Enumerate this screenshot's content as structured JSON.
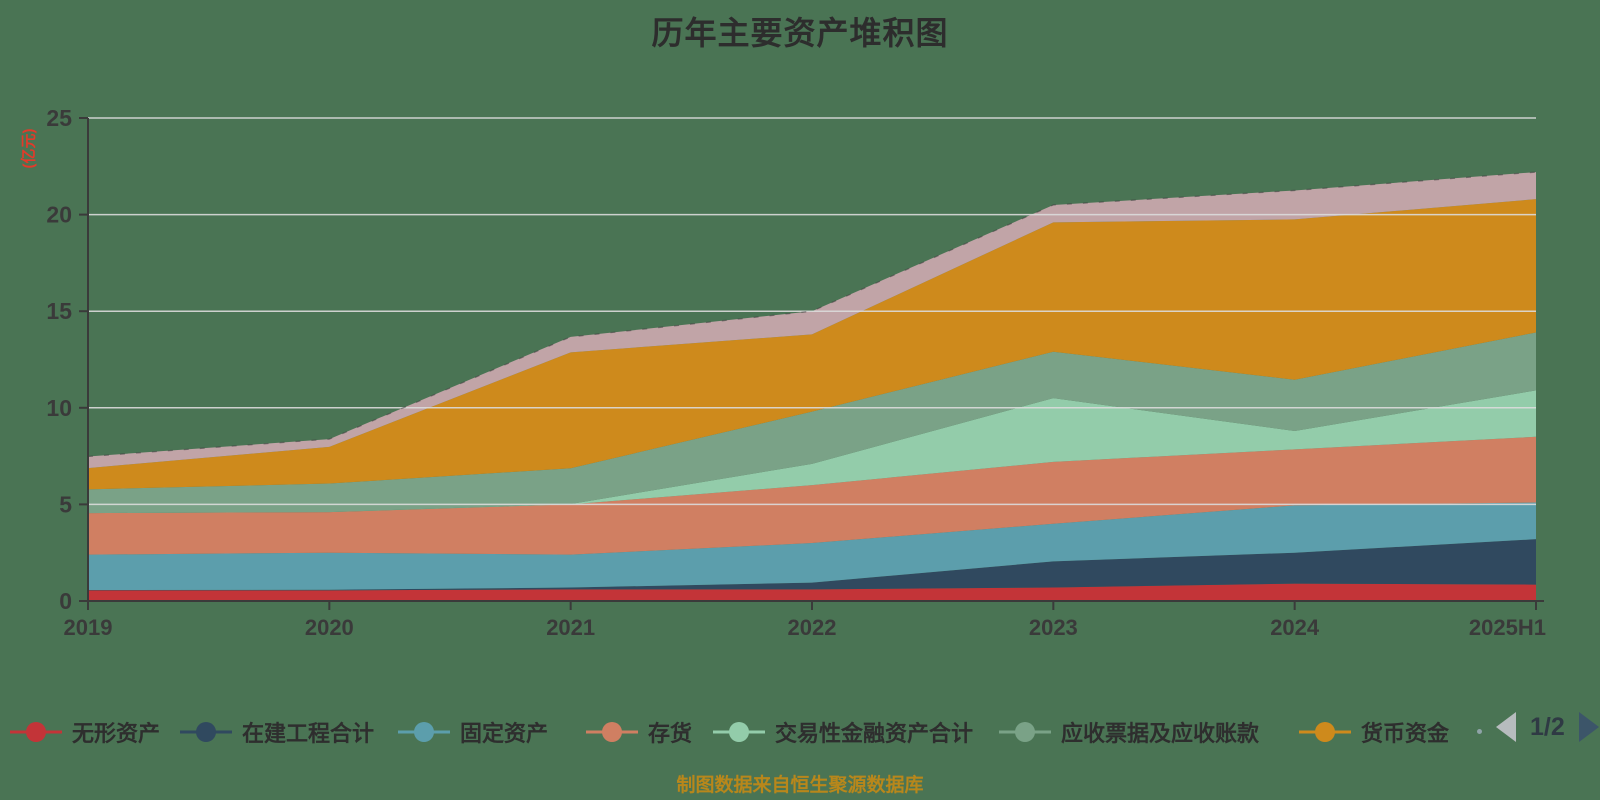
{
  "page": {
    "background_color": "#4A7454",
    "title": "历年主要资产堆积图",
    "caption": "制图数据来自恒生聚源数据库"
  },
  "axes": {
    "y_unit_label": "(亿元)",
    "y_tick_labels": [
      "0",
      "5",
      "10",
      "15",
      "20",
      "25"
    ],
    "x_tick_labels": [
      "2019",
      "2020",
      "2021",
      "2022",
      "2023",
      "2024",
      "2025H1"
    ],
    "gridline_color": "#DCDCDC",
    "axis_color": "#3A3A3A"
  },
  "legend": {
    "page_indicator": "1/2",
    "items": [
      "无形资产",
      "在建工程合计",
      "固定资产",
      "存货",
      "交易性金融资产合计",
      "应收票据及应收账款",
      "货币资金"
    ],
    "prev_arrow_color": "#B7BCBE",
    "next_arrow_color": "#3C5569"
  },
  "chart_data": {
    "type": "area",
    "stacked": true,
    "title": "历年主要资产堆积图",
    "ylabel": "(亿元)",
    "ylim": [
      0,
      25
    ],
    "grid": true,
    "legend_position": "bottom",
    "categories": [
      "2019",
      "2020",
      "2021",
      "2022",
      "2023",
      "2024",
      "2025H1"
    ],
    "series": [
      {
        "name": "无形资产",
        "color": "#C33438",
        "legend_visible": true,
        "values": [
          0.55,
          0.55,
          0.6,
          0.6,
          0.7,
          0.9,
          0.85
        ]
      },
      {
        "name": "在建工程合计",
        "color": "#30495F",
        "legend_visible": true,
        "values": [
          0.02,
          0.03,
          0.1,
          0.35,
          1.35,
          1.6,
          2.35
        ]
      },
      {
        "name": "固定资产",
        "color": "#5C9EAC",
        "legend_visible": true,
        "values": [
          1.83,
          1.92,
          1.7,
          2.05,
          1.95,
          2.45,
          1.9
        ]
      },
      {
        "name": "存货",
        "color": "#D07F62",
        "legend_visible": true,
        "values": [
          2.15,
          2.1,
          2.6,
          3.0,
          3.2,
          2.9,
          3.4
        ]
      },
      {
        "name": "交易性金融资产合计",
        "color": "#93CCAA",
        "legend_visible": true,
        "values": [
          0.0,
          0.0,
          0.02,
          1.1,
          3.3,
          0.95,
          2.4
        ]
      },
      {
        "name": "应收票据及应收账款",
        "color": "#7AA287",
        "legend_visible": true,
        "values": [
          1.23,
          1.48,
          1.85,
          2.7,
          2.4,
          2.65,
          3.0
        ]
      },
      {
        "name": "货币资金",
        "color": "#CE8A1C",
        "legend_visible": true,
        "values": [
          1.1,
          1.9,
          6.0,
          4.0,
          6.7,
          8.3,
          6.9
        ]
      },
      {
        "name": "",
        "color": "#C1A4A7",
        "legend_visible": false,
        "values": [
          0.6,
          0.4,
          0.8,
          1.2,
          0.9,
          1.5,
          1.4
        ]
      }
    ]
  }
}
